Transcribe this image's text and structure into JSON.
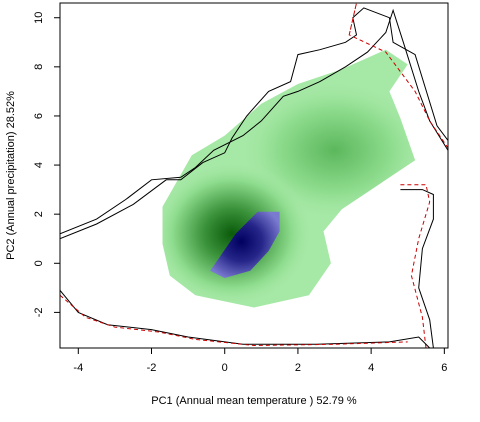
{
  "chart_data": {
    "type": "heatmap",
    "title": "",
    "xlabel": "PC1 (Annual mean temperature ) 52.79 %",
    "ylabel": "PC2 (Annual precipitation) 28.52%",
    "xlim": [
      -4.5,
      6.1
    ],
    "ylim": [
      -3.45,
      10.6
    ],
    "x_ticks": [
      -4,
      -2,
      0,
      2,
      4,
      6
    ],
    "y_ticks": [
      -2,
      0,
      2,
      4,
      6,
      8,
      10
    ],
    "grid": false,
    "legend": "none",
    "colors": {
      "density_low": "#a6e8a6",
      "density_mid": "#5cb85c",
      "density_high": "#0a5a0a",
      "overlap_low": "#7a7ad0",
      "overlap_high": "#000060",
      "contour_black": "#000000",
      "contour_red_dashed": "#cc0000"
    },
    "density_centers": [
      {
        "x": 0.2,
        "y": 1.2,
        "weight": 1.0
      },
      {
        "x": 3.0,
        "y": 4.6,
        "weight": 0.55
      }
    ],
    "overlap_polygon": [
      {
        "x": -0.3,
        "y": -0.1
      },
      {
        "x": 0.3,
        "y": 1.2
      },
      {
        "x": 0.9,
        "y": 2.1
      },
      {
        "x": 1.5,
        "y": 2.1
      },
      {
        "x": 1.5,
        "y": 1.3
      },
      {
        "x": 1.2,
        "y": 0.5
      },
      {
        "x": 0.7,
        "y": -0.3
      },
      {
        "x": 0.0,
        "y": -0.6
      },
      {
        "x": -0.4,
        "y": -0.3
      }
    ],
    "green_area_polygon": [
      {
        "x": -1.7,
        "y": 0.8
      },
      {
        "x": -1.7,
        "y": 2.3
      },
      {
        "x": -0.9,
        "y": 4.4
      },
      {
        "x": 0.0,
        "y": 5.2
      },
      {
        "x": 1.0,
        "y": 6.5
      },
      {
        "x": 2.0,
        "y": 7.3
      },
      {
        "x": 3.2,
        "y": 7.9
      },
      {
        "x": 4.4,
        "y": 8.7
      },
      {
        "x": 5.0,
        "y": 8.1
      },
      {
        "x": 4.5,
        "y": 7.0
      },
      {
        "x": 4.8,
        "y": 5.9
      },
      {
        "x": 5.2,
        "y": 4.2
      },
      {
        "x": 4.3,
        "y": 3.3
      },
      {
        "x": 3.2,
        "y": 2.2
      },
      {
        "x": 2.7,
        "y": 1.3
      },
      {
        "x": 2.9,
        "y": 0.0
      },
      {
        "x": 2.3,
        "y": -1.3
      },
      {
        "x": 0.8,
        "y": -1.8
      },
      {
        "x": -0.8,
        "y": -1.3
      },
      {
        "x": -1.5,
        "y": -0.5
      }
    ],
    "contour_lines": [
      {
        "style": "black",
        "points": [
          {
            "x": -4.5,
            "y": 1.0
          },
          {
            "x": -3.5,
            "y": 1.6
          },
          {
            "x": -2.5,
            "y": 2.4
          },
          {
            "x": -1.6,
            "y": 3.4
          },
          {
            "x": -1.2,
            "y": 3.4
          },
          {
            "x": -0.6,
            "y": 4.1
          },
          {
            "x": 0.0,
            "y": 4.5
          },
          {
            "x": 0.2,
            "y": 5.1
          },
          {
            "x": 0.6,
            "y": 6.0
          },
          {
            "x": 1.2,
            "y": 7.0
          },
          {
            "x": 1.8,
            "y": 7.4
          },
          {
            "x": 2.0,
            "y": 8.5
          },
          {
            "x": 2.6,
            "y": 8.7
          },
          {
            "x": 3.3,
            "y": 9.0
          },
          {
            "x": 3.6,
            "y": 9.3
          },
          {
            "x": 3.5,
            "y": 10.0
          },
          {
            "x": 3.8,
            "y": 10.4
          },
          {
            "x": 4.5,
            "y": 10.0
          },
          {
            "x": 4.6,
            "y": 9.0
          },
          {
            "x": 5.2,
            "y": 8.5
          },
          {
            "x": 5.8,
            "y": 5.6
          },
          {
            "x": 6.1,
            "y": 5.0
          }
        ]
      },
      {
        "style": "black",
        "points": [
          {
            "x": -4.5,
            "y": 1.2
          },
          {
            "x": -3.5,
            "y": 1.8
          },
          {
            "x": -2.7,
            "y": 2.6
          },
          {
            "x": -2.0,
            "y": 3.4
          },
          {
            "x": -1.2,
            "y": 3.5
          },
          {
            "x": -0.8,
            "y": 3.9
          },
          {
            "x": -0.3,
            "y": 4.6
          },
          {
            "x": 0.5,
            "y": 5.2
          },
          {
            "x": 1.0,
            "y": 5.8
          },
          {
            "x": 1.6,
            "y": 6.8
          },
          {
            "x": 2.0,
            "y": 7.0
          },
          {
            "x": 2.6,
            "y": 7.4
          },
          {
            "x": 3.3,
            "y": 8.0
          },
          {
            "x": 3.9,
            "y": 8.6
          },
          {
            "x": 4.4,
            "y": 9.4
          },
          {
            "x": 4.6,
            "y": 10.3
          },
          {
            "x": 4.9,
            "y": 8.9
          },
          {
            "x": 5.3,
            "y": 7.0
          },
          {
            "x": 5.6,
            "y": 5.8
          },
          {
            "x": 6.1,
            "y": 4.6
          }
        ]
      },
      {
        "style": "red-dashed",
        "points": [
          {
            "x": 3.4,
            "y": 9.3
          },
          {
            "x": 3.6,
            "y": 10.6
          },
          {
            "x": 3.4,
            "y": 9.3
          },
          {
            "x": 4.4,
            "y": 8.6
          },
          {
            "x": 5.2,
            "y": 7.0
          },
          {
            "x": 5.6,
            "y": 5.8
          },
          {
            "x": 6.1,
            "y": 4.7
          }
        ]
      },
      {
        "style": "black",
        "points": [
          {
            "x": 4.8,
            "y": 3.0
          },
          {
            "x": 5.4,
            "y": 3.0
          },
          {
            "x": 5.7,
            "y": 2.8
          },
          {
            "x": 5.7,
            "y": 1.8
          },
          {
            "x": 5.4,
            "y": 0.6
          },
          {
            "x": 5.3,
            "y": -1.0
          },
          {
            "x": 5.6,
            "y": -2.3
          },
          {
            "x": 5.7,
            "y": -3.45
          }
        ]
      },
      {
        "style": "red-dashed",
        "points": [
          {
            "x": 4.8,
            "y": 3.2
          },
          {
            "x": 5.5,
            "y": 3.2
          },
          {
            "x": 5.6,
            "y": 2.5
          },
          {
            "x": 5.3,
            "y": 1.0
          },
          {
            "x": 5.1,
            "y": -0.5
          },
          {
            "x": 5.4,
            "y": -2.2
          },
          {
            "x": 5.5,
            "y": -3.45
          }
        ]
      },
      {
        "style": "black",
        "points": [
          {
            "x": -4.5,
            "y": -1.1
          },
          {
            "x": -4.0,
            "y": -2.0
          },
          {
            "x": -3.2,
            "y": -2.5
          },
          {
            "x": -2.0,
            "y": -2.7
          },
          {
            "x": -1.0,
            "y": -3.0
          },
          {
            "x": 0.5,
            "y": -3.3
          },
          {
            "x": 2.5,
            "y": -3.3
          },
          {
            "x": 4.5,
            "y": -3.2
          },
          {
            "x": 5.3,
            "y": -3.0
          },
          {
            "x": 5.6,
            "y": -3.45
          }
        ]
      },
      {
        "style": "red-dashed",
        "points": [
          {
            "x": -4.5,
            "y": -1.3
          },
          {
            "x": -3.8,
            "y": -2.2
          },
          {
            "x": -3.0,
            "y": -2.6
          },
          {
            "x": -1.8,
            "y": -2.8
          },
          {
            "x": -0.8,
            "y": -3.1
          },
          {
            "x": 0.8,
            "y": -3.35
          },
          {
            "x": 3.0,
            "y": -3.3
          },
          {
            "x": 5.0,
            "y": -3.2
          }
        ]
      }
    ]
  }
}
